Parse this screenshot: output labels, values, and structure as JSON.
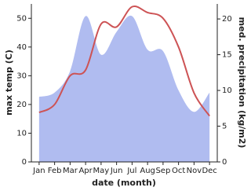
{
  "chart_data": {
    "type": "line",
    "x_label": "date (month)",
    "y_label": "max temp (C)",
    "y2_label": "med. precipitation (kg/m2)",
    "categories": [
      "Jan",
      "Feb",
      "Mar",
      "Apr",
      "May",
      "Jun",
      "Jul",
      "Aug",
      "Sep",
      "Oct",
      "Nov",
      "Dec"
    ],
    "series": [
      {
        "name": "med. precipitation",
        "kind": "area",
        "axis": "y2",
        "color": "#b0bcf0",
        "values": [
          9.1,
          9.7,
          12.7,
          20.4,
          15,
          18.2,
          20.4,
          15.7,
          15.5,
          10,
          7,
          9.7
        ]
      },
      {
        "name": "max temp",
        "kind": "line",
        "color": "#cd5355",
        "values": [
          17.2,
          20,
          30,
          32,
          48,
          47,
          54,
          52,
          50,
          40,
          24,
          16
        ]
      }
    ],
    "ylim": [
      0,
      55
    ],
    "yticks": [
      0,
      10,
      20,
      30,
      40,
      50
    ],
    "y2lim": [
      0,
      22.1
    ],
    "y2ticks": [
      0,
      5,
      10,
      15,
      20
    ]
  }
}
